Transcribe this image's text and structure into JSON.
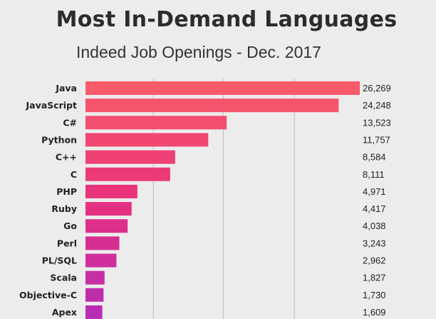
{
  "chart_data": {
    "type": "bar",
    "orientation": "horizontal",
    "title": "Most In-Demand Languages",
    "subtitle": "Indeed Job Openings - Dec. 2017",
    "categories": [
      "Java",
      "JavaScript",
      "C#",
      "Python",
      "C++",
      "C",
      "PHP",
      "Ruby",
      "Go",
      "Perl",
      "PL/SQL",
      "Scala",
      "Objective-C",
      "Apex"
    ],
    "values": [
      26269,
      24248,
      13523,
      11757,
      8584,
      8111,
      4971,
      4417,
      4038,
      3243,
      2962,
      1827,
      1730,
      1609
    ],
    "value_labels": [
      "26,269",
      "24,248",
      "13,523",
      "11,757",
      "8,584",
      "8,111",
      "4,971",
      "4,417",
      "4,038",
      "3,243",
      "2,962",
      "1,827",
      "1,730",
      "1,609"
    ],
    "xlim": [
      0,
      26269
    ],
    "grid": true,
    "gridlines_at": [
      6500,
      13200,
      20000
    ],
    "colors": {
      "bar_start": "#f85a6a",
      "bar_mid": "#e8307c",
      "bar_end": "#b92db5",
      "grid": "#bdbdbd"
    }
  }
}
